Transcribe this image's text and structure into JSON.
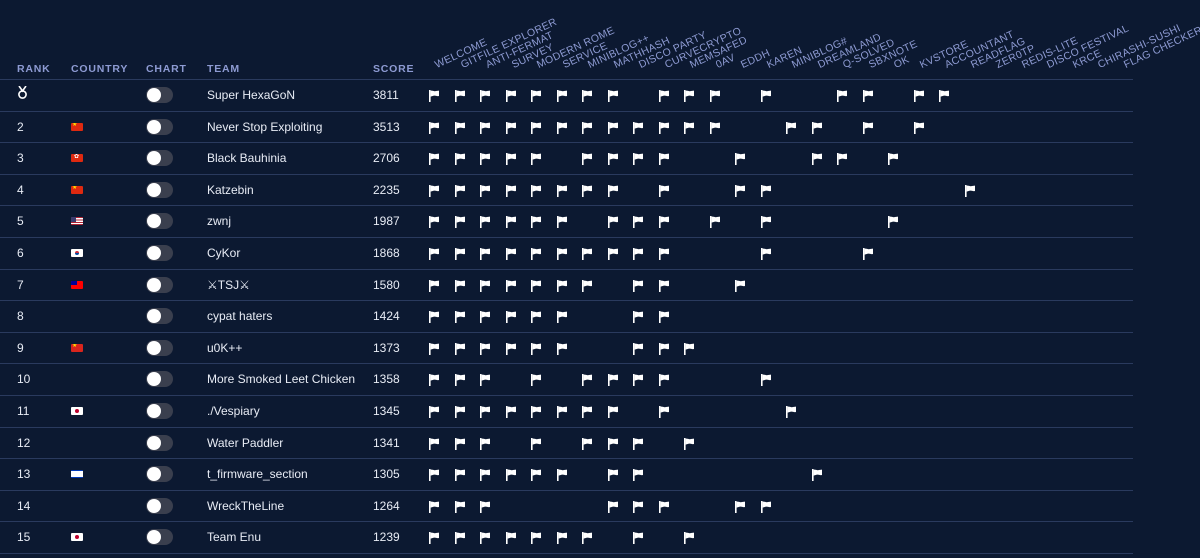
{
  "columns": {
    "rank": "RANK",
    "country": "COUNTRY",
    "chart": "CHART",
    "team": "TEAM",
    "score": "SCORE"
  },
  "challenges": [
    "WELCOME",
    "GITFILE EXPLORER",
    "ANTI-FERMAT",
    "SURVEY",
    "MODERN ROME",
    "SERVICE",
    "MINIBLOG++",
    "MATHHASH",
    "DISCO PARTY",
    "CURVECRYPTO",
    "MEMSAFED",
    "0AV",
    "EDDH",
    "KAREN",
    "MINIBLOG#",
    "DREAMLAND",
    "Q-SOLVED",
    "SBXNOTE",
    "OK",
    "KVSTORE",
    "ACCOUNTANT",
    "READFLAG",
    "ZER0TP",
    "REDIS-LITE",
    "DISCO FESTIVAL",
    "KRCE",
    "CHIRASHI-SUSHI",
    "FLAG CHECKER"
  ],
  "teams": [
    {
      "rank": "",
      "rank_icon": "medal-icon",
      "country": "",
      "name": "Super HexaGoN",
      "score": "3811",
      "solves": [
        0,
        1,
        2,
        3,
        4,
        5,
        6,
        7,
        9,
        10,
        11,
        13,
        16,
        17,
        19,
        20
      ]
    },
    {
      "rank": "2",
      "country": "cn",
      "name": "Never Stop Exploiting",
      "score": "3513",
      "solves": [
        0,
        1,
        2,
        3,
        4,
        5,
        6,
        7,
        8,
        9,
        10,
        11,
        14,
        15,
        17,
        19
      ]
    },
    {
      "rank": "3",
      "country": "hk",
      "name": "Black Bauhinia",
      "score": "2706",
      "solves": [
        0,
        1,
        2,
        3,
        4,
        6,
        7,
        8,
        9,
        12,
        15,
        16,
        18
      ]
    },
    {
      "rank": "4",
      "country": "cn",
      "name": "Katzebin",
      "score": "2235",
      "solves": [
        0,
        1,
        2,
        3,
        4,
        5,
        6,
        7,
        9,
        12,
        13,
        21
      ]
    },
    {
      "rank": "5",
      "country": "us",
      "name": "zwnj",
      "score": "1987",
      "solves": [
        0,
        1,
        2,
        3,
        4,
        5,
        7,
        8,
        9,
        11,
        13,
        18
      ]
    },
    {
      "rank": "6",
      "country": "kr",
      "name": "CyKor",
      "score": "1868",
      "solves": [
        0,
        1,
        2,
        3,
        4,
        5,
        6,
        7,
        8,
        9,
        13,
        17
      ]
    },
    {
      "rank": "7",
      "country": "tw",
      "name": "⚔TSJ⚔",
      "score": "1580",
      "solves": [
        0,
        1,
        2,
        3,
        4,
        5,
        6,
        8,
        9,
        12
      ]
    },
    {
      "rank": "8",
      "country": "",
      "name": "cypat haters",
      "score": "1424",
      "solves": [
        0,
        1,
        2,
        3,
        4,
        5,
        8,
        9
      ]
    },
    {
      "rank": "9",
      "country": "vn",
      "name": "u0K++",
      "score": "1373",
      "solves": [
        0,
        1,
        2,
        3,
        4,
        5,
        8,
        9,
        10
      ]
    },
    {
      "rank": "10",
      "country": "",
      "name": "More Smoked Leet Chicken",
      "score": "1358",
      "solves": [
        0,
        1,
        2,
        4,
        6,
        7,
        8,
        9,
        13
      ]
    },
    {
      "rank": "11",
      "country": "jp",
      "name": "./Vespiary",
      "score": "1345",
      "solves": [
        0,
        1,
        2,
        3,
        4,
        5,
        6,
        7,
        9,
        14
      ]
    },
    {
      "rank": "12",
      "country": "",
      "name": "Water Paddler",
      "score": "1341",
      "solves": [
        0,
        1,
        2,
        4,
        6,
        7,
        8,
        10
      ]
    },
    {
      "rank": "13",
      "country": "il",
      "name": "t_firmware_section",
      "score": "1305",
      "solves": [
        0,
        1,
        2,
        3,
        4,
        5,
        7,
        8,
        15
      ]
    },
    {
      "rank": "14",
      "country": "",
      "name": "WreckTheLine",
      "score": "1264",
      "solves": [
        0,
        1,
        2,
        7,
        8,
        9,
        12,
        13
      ]
    },
    {
      "rank": "15",
      "country": "jp",
      "name": "Team Enu",
      "score": "1239",
      "solves": [
        0,
        1,
        2,
        3,
        4,
        5,
        6,
        8,
        10
      ]
    }
  ]
}
